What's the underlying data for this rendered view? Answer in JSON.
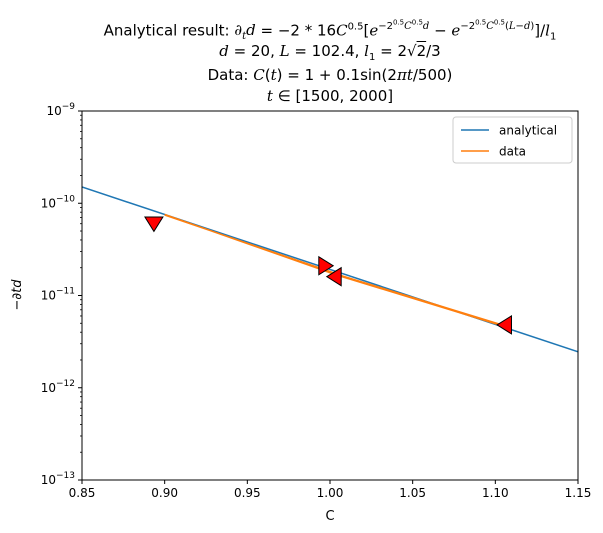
{
  "chart_data": {
    "type": "line",
    "title_lines": [
      "Analytical result: ∂td = −2 * 16C^0.5[e^(−2^0.5 C^0.5 d) − e^(−2^0.5 C^0.5 (L−d))]/l1",
      "d = 20, L = 102.4, l1 = 2√2/3",
      "Data: C(t) = 1 + 0.1sin(2πt/500)",
      "t ∈ [1500, 2000]"
    ],
    "xlabel": "C",
    "ylabel": "−∂td",
    "xlim": [
      0.85,
      1.15
    ],
    "ylim": [
      1e-13,
      1e-09
    ],
    "yscale": "log",
    "x_ticks": [
      "0.85",
      "0.90",
      "0.95",
      "1.00",
      "1.05",
      "1.10",
      "1.15"
    ],
    "y_tick_exponents": [
      -13,
      -12,
      -11,
      -10,
      -9
    ],
    "legend_position": "upper-right",
    "grid": false,
    "series": [
      {
        "name": "analytical",
        "color": "#1f77b4",
        "x": [
          0.85,
          1.15
        ],
        "y": [
          1.5e-10,
          2.45e-12
        ]
      },
      {
        "name": "data",
        "color": "#ff7f0e",
        "x": [
          0.9,
          0.9985,
          1.0065,
          1.1045,
          1.1005,
          1.0025,
          0.994,
          0.9
        ],
        "y": [
          7.45e-11,
          1.86e-11,
          1.65e-11,
          4.78e-12,
          4.92e-12,
          1.7e-11,
          1.93e-11,
          7.55e-11
        ]
      }
    ],
    "markers": {
      "style": "triangle",
      "fill": "#ff0000",
      "edge": "#000000",
      "points": [
        {
          "x": 0.8935,
          "y": 6.2e-11,
          "direction": "down"
        },
        {
          "x": 0.9965,
          "y": 2.1e-11,
          "direction": "right"
        },
        {
          "x": 1.0035,
          "y": 1.6e-11,
          "direction": "left"
        },
        {
          "x": 1.1065,
          "y": 4.8e-12,
          "direction": "left"
        }
      ]
    }
  }
}
